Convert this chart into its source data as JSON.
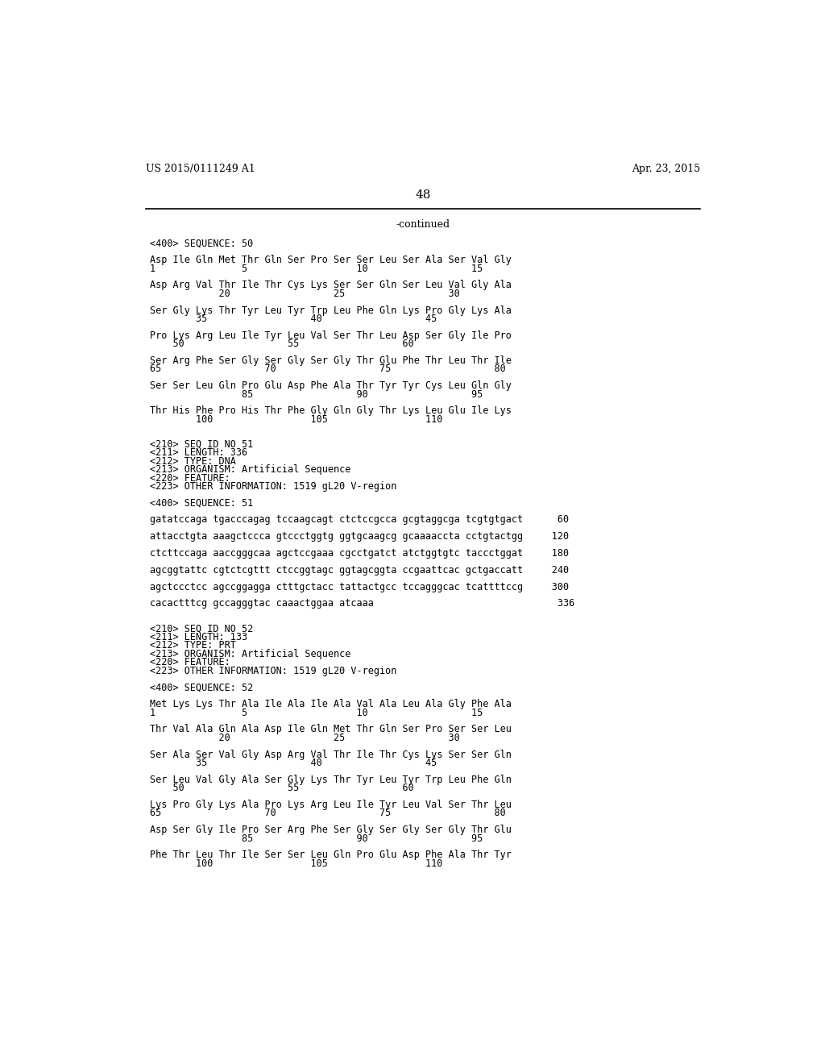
{
  "header_left": "US 2015/0111249 A1",
  "header_right": "Apr. 23, 2015",
  "page_number": "48",
  "continued": "-continued",
  "bg_color": "#ffffff",
  "text_color": "#000000",
  "font_size": 8.5,
  "header_font_size": 9,
  "page_num_font_size": 11,
  "lines": [
    "<400> SEQUENCE: 50",
    "",
    "Asp Ile Gln Met Thr Gln Ser Pro Ser Ser Leu Ser Ala Ser Val Gly",
    "1               5                   10                  15",
    "",
    "Asp Arg Val Thr Ile Thr Cys Lys Ser Ser Gln Ser Leu Val Gly Ala",
    "            20                  25                  30",
    "",
    "Ser Gly Lys Thr Tyr Leu Tyr Trp Leu Phe Gln Lys Pro Gly Lys Ala",
    "        35                  40                  45",
    "",
    "Pro Lys Arg Leu Ile Tyr Leu Val Ser Thr Leu Asp Ser Gly Ile Pro",
    "    50                  55                  60",
    "",
    "Ser Arg Phe Ser Gly Ser Gly Ser Gly Thr Glu Phe Thr Leu Thr Ile",
    "65                  70                  75                  80",
    "",
    "Ser Ser Leu Gln Pro Glu Asp Phe Ala Thr Tyr Tyr Cys Leu Gln Gly",
    "                85                  90                  95",
    "",
    "Thr His Phe Pro His Thr Phe Gly Gln Gly Thr Lys Leu Glu Ile Lys",
    "        100                 105                 110",
    "",
    "",
    "<210> SEQ ID NO 51",
    "<211> LENGTH: 336",
    "<212> TYPE: DNA",
    "<213> ORGANISM: Artificial Sequence",
    "<220> FEATURE:",
    "<223> OTHER INFORMATION: 1519 gL20 V-region",
    "",
    "<400> SEQUENCE: 51",
    "",
    "gatatccaga tgacccagag tccaagcagt ctctccgcca gcgtaggcga tcgtgtgact      60",
    "",
    "attacctgta aaagctccca gtccctggtg ggtgcaagcg gcaaaaccta cctgtactgg     120",
    "",
    "ctcttccaga aaccgggcaa agctccgaaa cgcctgatct atctggtgtc taccctggat     180",
    "",
    "agcggtattc cgtctcgttt ctccggtagc ggtagcggta ccgaattcac gctgaccatt     240",
    "",
    "agctccctcc agccggagga ctttgctacc tattactgcc tccagggcac tcattttccg     300",
    "",
    "cacactttcg gccagggtac caaactggaa atcaaa                                336",
    "",
    "",
    "<210> SEQ ID NO 52",
    "<211> LENGTH: 133",
    "<212> TYPE: PRT",
    "<213> ORGANISM: Artificial Sequence",
    "<220> FEATURE:",
    "<223> OTHER INFORMATION: 1519 gL20 V-region",
    "",
    "<400> SEQUENCE: 52",
    "",
    "Met Lys Lys Thr Ala Ile Ala Ile Ala Val Ala Leu Ala Gly Phe Ala",
    "1               5                   10                  15",
    "",
    "Thr Val Ala Gln Ala Asp Ile Gln Met Thr Gln Ser Pro Ser Ser Leu",
    "            20                  25                  30",
    "",
    "Ser Ala Ser Val Gly Asp Arg Val Thr Ile Thr Cys Lys Ser Ser Gln",
    "        35                  40                  45",
    "",
    "Ser Leu Val Gly Ala Ser Gly Lys Thr Tyr Leu Tyr Trp Leu Phe Gln",
    "    50                  55                  60",
    "",
    "Lys Pro Gly Lys Ala Pro Lys Arg Leu Ile Tyr Leu Val Ser Thr Leu",
    "65                  70                  75                  80",
    "",
    "Asp Ser Gly Ile Pro Ser Arg Phe Ser Gly Ser Gly Ser Gly Thr Glu",
    "                85                  90                  95",
    "",
    "Phe Thr Leu Thr Ile Ser Ser Leu Gln Pro Glu Asp Phe Ala Thr Tyr",
    "        100                 105                 110"
  ]
}
